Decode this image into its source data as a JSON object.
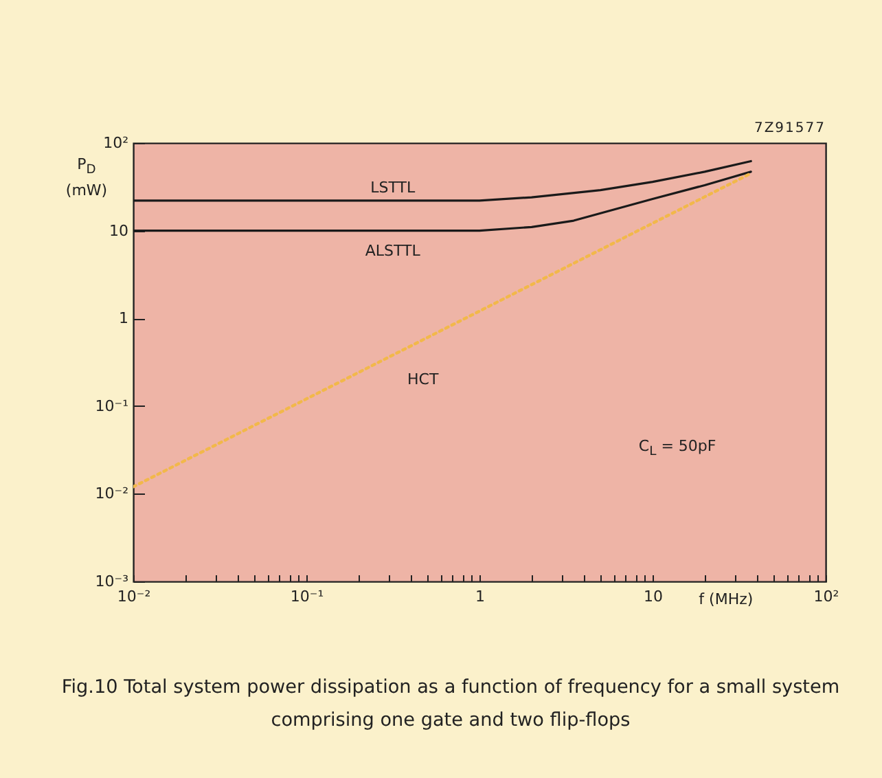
{
  "chart_data": {
    "type": "line",
    "title": "Fig.10   Total system power dissipation as a function of frequency for a small system comprising one gate and two flip-flops",
    "xlabel": "f (MHz)",
    "ylabel": "P$_{D}$ (mW)",
    "log": "xy",
    "grid": false,
    "xlim": [
      0.01,
      100
    ],
    "ylim": [
      0.001,
      100
    ],
    "xticks": [
      {
        "value": 0.01,
        "label": "10⁻²"
      },
      {
        "value": 0.02,
        "label": null
      },
      {
        "value": 0.03,
        "label": null
      },
      {
        "value": 0.04,
        "label": null
      },
      {
        "value": 0.05,
        "label": null
      },
      {
        "value": 0.06,
        "label": null
      },
      {
        "value": 0.07,
        "label": null
      },
      {
        "value": 0.08,
        "label": null
      },
      {
        "value": 0.09,
        "label": null
      },
      {
        "value": 0.1,
        "label": "10⁻¹"
      },
      {
        "value": 0.2,
        "label": null
      },
      {
        "value": 0.3,
        "label": null
      },
      {
        "value": 0.4,
        "label": null
      },
      {
        "value": 0.5,
        "label": null
      },
      {
        "value": 0.6,
        "label": null
      },
      {
        "value": 0.7,
        "label": null
      },
      {
        "value": 0.8,
        "label": null
      },
      {
        "value": 0.9,
        "label": null
      },
      {
        "value": 1,
        "label": "1"
      },
      {
        "value": 2,
        "label": null
      },
      {
        "value": 3,
        "label": null
      },
      {
        "value": 4,
        "label": null
      },
      {
        "value": 5,
        "label": null
      },
      {
        "value": 6,
        "label": null
      },
      {
        "value": 7,
        "label": null
      },
      {
        "value": 8,
        "label": null
      },
      {
        "value": 9,
        "label": null
      },
      {
        "value": 10,
        "label": "10"
      },
      {
        "value": 20,
        "label": null
      },
      {
        "value": 30,
        "label": null
      },
      {
        "value": 40,
        "label": null
      },
      {
        "value": 50,
        "label": null
      },
      {
        "value": 60,
        "label": null
      },
      {
        "value": 70,
        "label": null
      },
      {
        "value": 80,
        "label": null
      },
      {
        "value": 90,
        "label": null
      },
      {
        "value": 100,
        "label": "10²"
      }
    ],
    "yticks": [
      {
        "value": 0.001,
        "label": "10⁻³"
      },
      {
        "value": 0.01,
        "label": "10⁻²"
      },
      {
        "value": 0.1,
        "label": "10⁻¹"
      },
      1,
      10,
      {
        "value": 100,
        "label": "10²"
      }
    ],
    "series": [
      {
        "name": "LSTTL",
        "color": "#1a1a1a",
        "line_style": "solid",
        "x": [
          0.01,
          0.1,
          1,
          2,
          5,
          10,
          20,
          37
        ],
        "values": [
          22,
          22,
          22,
          24,
          29,
          36,
          47,
          62
        ]
      },
      {
        "name": "ALSTTL",
        "color": "#1a1a1a",
        "line_style": "solid",
        "x": [
          0.01,
          0.1,
          1,
          2,
          3.5,
          10,
          20,
          37
        ],
        "values": [
          10,
          10,
          10,
          11,
          13,
          23,
          33,
          47
        ]
      },
      {
        "name": "HCT",
        "color": "#f2b84a",
        "line_style": "dotted",
        "x": [
          0.01,
          37
        ],
        "values": [
          0.012,
          45
        ]
      }
    ],
    "annotations": [
      "7Z91577",
      "C$_{L}$ = 50pF"
    ]
  }
}
